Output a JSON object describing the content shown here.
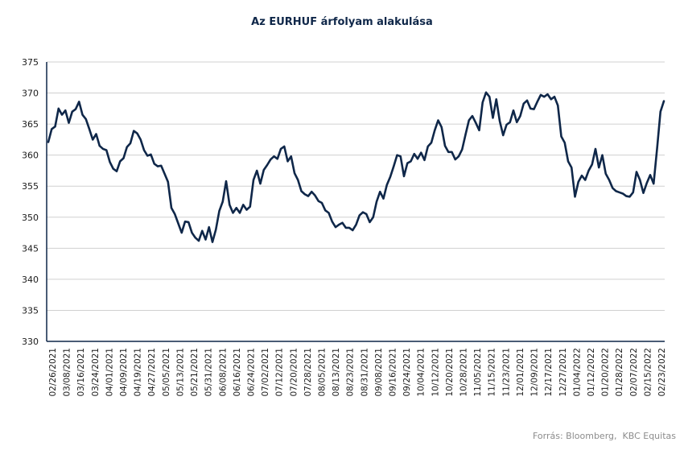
{
  "chart_data": {
    "type": "line",
    "title": "Az EURHUF árfolyam alakulása",
    "source": "Forrás: Bloomberg,  KBC Equitas",
    "ylim": [
      330,
      375
    ],
    "y_ticks": [
      330,
      335,
      340,
      345,
      350,
      355,
      360,
      365,
      370,
      375
    ],
    "x_tick_labels": [
      "02/26/2021",
      "03/08/2021",
      "03/16/2021",
      "03/24/2021",
      "04/01/2021",
      "04/09/2021",
      "04/19/2021",
      "04/27/2021",
      "05/05/2021",
      "05/13/2021",
      "05/21/2021",
      "05/31/2021",
      "06/08/2021",
      "06/16/2021",
      "06/24/2021",
      "07/02/2021",
      "07/12/2021",
      "07/20/2021",
      "07/28/2021",
      "08/05/2021",
      "08/13/2021",
      "08/23/2021",
      "08/31/2021",
      "09/08/2021",
      "09/16/2021",
      "09/24/2021",
      "10/04/2021",
      "10/12/2021",
      "10/20/2021",
      "10/28/2021",
      "11/05/2021",
      "11/15/2021",
      "11/23/2021",
      "12/01/2021",
      "12/09/2021",
      "12/17/2021",
      "12/27/2021",
      "01/04/2022",
      "01/12/2022",
      "01/20/2022",
      "01/28/2022",
      "02/07/2022",
      "02/15/2022",
      "02/23/2022"
    ],
    "grid": "horizontal",
    "colors": {
      "line": "#0f2749",
      "grid": "#d0d0d0",
      "axis": "#0f2749"
    },
    "series": [
      {
        "values": [
          362.1,
          364.2,
          364.6,
          367.5,
          366.5,
          367.2,
          365.2,
          367.0,
          367.4,
          368.6,
          366.5,
          365.8,
          364.2,
          362.5,
          363.4,
          361.5,
          361.0,
          360.8,
          358.9,
          357.8,
          357.4,
          359.0,
          359.5,
          361.3,
          361.9,
          363.9,
          363.5,
          362.5,
          360.8,
          359.9,
          360.1,
          358.6,
          358.2,
          358.3,
          357.0,
          355.7,
          351.5,
          350.5,
          349.0,
          347.5,
          349.3,
          349.2,
          347.5,
          346.7,
          346.2,
          347.8,
          346.4,
          348.4,
          346.0,
          348.0,
          351.0,
          352.5,
          355.8,
          352.0,
          350.7,
          351.5,
          350.7,
          352.0,
          351.2,
          351.7,
          356.0,
          357.5,
          355.4,
          357.6,
          358.4,
          359.3,
          359.8,
          359.4,
          361.0,
          361.4,
          359.0,
          359.8,
          357.1,
          356.0,
          354.2,
          353.7,
          353.4,
          354.1,
          353.5,
          352.6,
          352.3,
          351.1,
          350.7,
          349.3,
          348.4,
          348.8,
          349.1,
          348.3,
          348.3,
          347.9,
          348.8,
          350.3,
          350.8,
          350.5,
          349.2,
          350.0,
          352.5,
          354.1,
          353.0,
          355.2,
          356.5,
          358.2,
          360.0,
          359.8,
          356.6,
          358.7,
          359.0,
          360.2,
          359.4,
          360.4,
          359.2,
          361.4,
          362.0,
          364.0,
          365.6,
          364.5,
          361.5,
          360.5,
          360.5,
          359.3,
          359.8,
          360.9,
          363.3,
          365.6,
          366.3,
          365.2,
          364.0,
          368.5,
          370.1,
          369.4,
          366.0,
          369.0,
          365.5,
          363.2,
          364.9,
          365.3,
          367.2,
          365.3,
          366.3,
          368.3,
          368.8,
          367.5,
          367.4,
          368.6,
          369.7,
          369.4,
          369.8,
          369.0,
          369.4,
          368.0,
          363.0,
          362.0,
          359.0,
          358.0,
          353.3,
          355.7,
          356.7,
          356.0,
          357.5,
          358.5,
          361.0,
          358.0,
          360.0,
          357.0,
          356.0,
          354.7,
          354.2,
          354.0,
          353.8,
          353.4,
          353.3,
          354.0,
          357.3,
          356.0,
          353.9,
          355.5,
          356.8,
          355.4,
          361.0,
          367.0,
          368.7
        ]
      }
    ]
  }
}
